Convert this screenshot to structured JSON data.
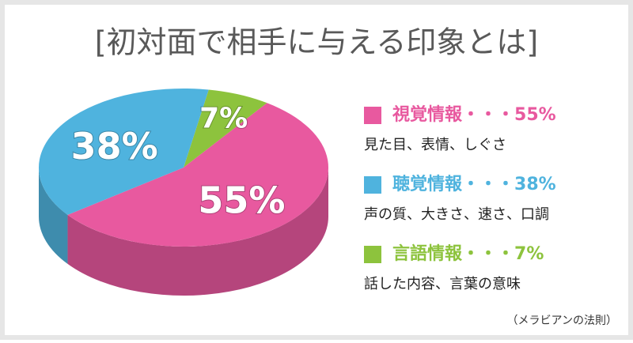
{
  "chart_data": {
    "type": "pie",
    "title": "[初対面で相手に与える印象とは]",
    "categories": [
      "視覚情報",
      "聴覚情報",
      "言語情報"
    ],
    "values": [
      55,
      38,
      7
    ],
    "value_labels": [
      "55%",
      "38%",
      "7%"
    ],
    "colors": [
      "#e8599f",
      "#4fb3de",
      "#8dc33d"
    ],
    "separator": "・・・",
    "descriptions": [
      "見た目、表情、しぐさ",
      "声の質、大きさ、速さ、口調",
      "話した内容、言葉の意味"
    ],
    "note": "（メラビアンの法則）"
  }
}
